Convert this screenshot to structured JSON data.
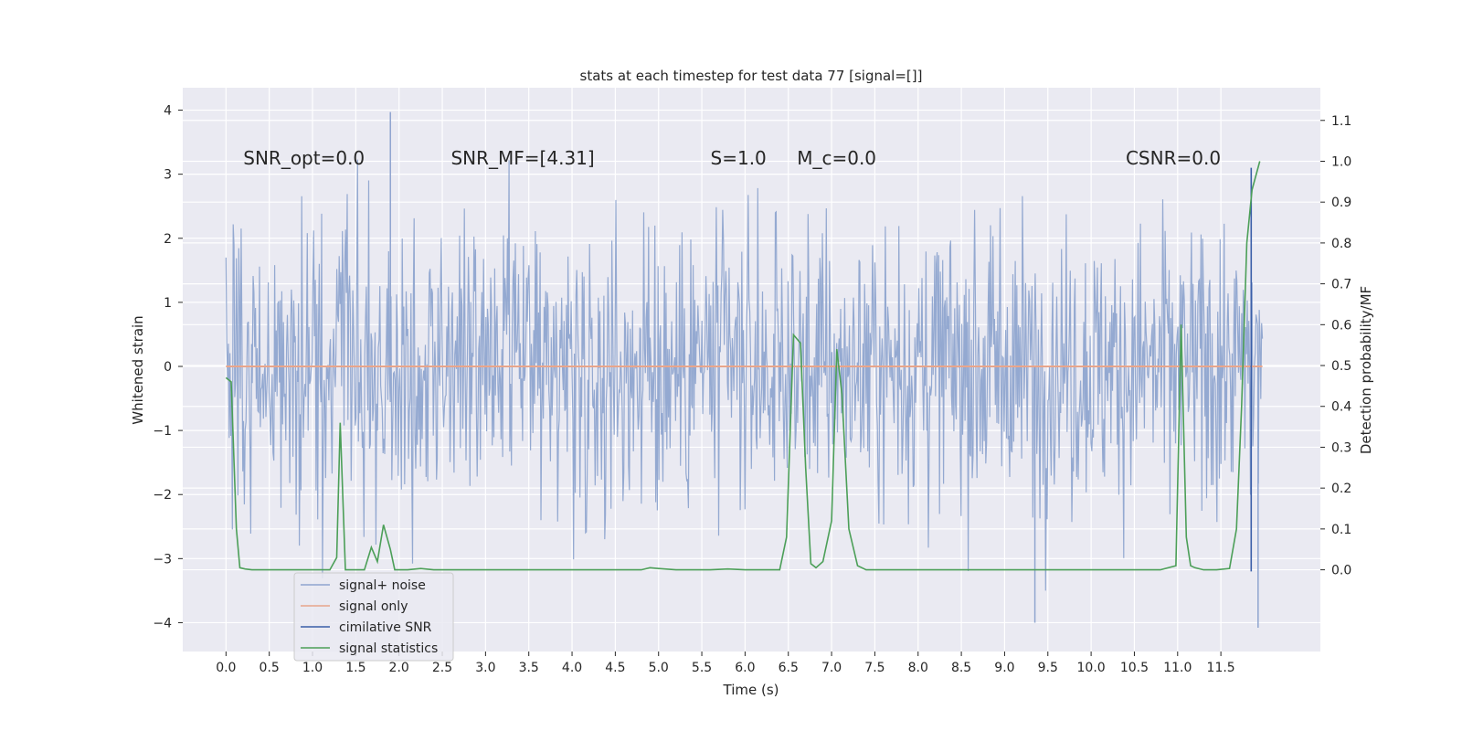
{
  "chart_data": {
    "type": "line",
    "title": "stats at each timestep for test data 77 [signal=[]]",
    "xlabel": "Time (s)",
    "ylabel": "Whitened strain",
    "y2label": "Detection probability/MF",
    "xlim": [
      -0.5,
      12.65
    ],
    "ylim": [
      -4.45,
      4.35
    ],
    "y2lim": [
      -0.2,
      1.18
    ],
    "x_ticks": [
      0.0,
      0.5,
      1.0,
      1.5,
      2.0,
      2.5,
      3.0,
      3.5,
      4.0,
      4.5,
      5.0,
      5.5,
      6.0,
      6.5,
      7.0,
      7.5,
      8.0,
      8.5,
      9.0,
      9.5,
      10.0,
      10.5,
      11.0,
      11.5
    ],
    "x_tick_labels": [
      "0.0",
      "0.5",
      "1.0",
      "1.5",
      "2.0",
      "2.5",
      "3.0",
      "3.5",
      "4.0",
      "4.5",
      "5.0",
      "5.5",
      "6.0",
      "6.5",
      "7.0",
      "7.5",
      "8.0",
      "8.5",
      "9.0",
      "9.5",
      "10.0",
      "10.5",
      "11.0",
      "11.5"
    ],
    "y_ticks": [
      -4,
      -3,
      -2,
      -1,
      0,
      1,
      2,
      3,
      4
    ],
    "y_tick_labels": [
      "−4",
      "−3",
      "−2",
      "−1",
      "0",
      "1",
      "2",
      "3",
      "4"
    ],
    "y2_ticks": [
      0.0,
      0.1,
      0.2,
      0.3,
      0.4,
      0.5,
      0.6,
      0.7,
      0.8,
      0.9,
      1.0,
      1.1
    ],
    "y2_tick_labels": [
      "0.0",
      "0.1",
      "0.2",
      "0.3",
      "0.4",
      "0.5",
      "0.6",
      "0.7",
      "0.8",
      "0.9",
      "1.0",
      "1.1"
    ],
    "grid": true,
    "legend_position": "lower-left",
    "annotations": [
      {
        "id": "snr-opt",
        "text": "SNR_opt=0.0",
        "x": 0.2
      },
      {
        "id": "snr-mf",
        "text": "SNR_MF=[4.31]",
        "x": 2.6
      },
      {
        "id": "s-val",
        "text": "S=1.0",
        "x": 5.6
      },
      {
        "id": "mc-val",
        "text": "M_c=0.0",
        "x": 6.6
      },
      {
        "id": "csnr",
        "text": "CSNR=0.0",
        "x": 10.4
      }
    ],
    "annotation_y": 3.15,
    "series": [
      {
        "name": "signal+ noise",
        "color": "#8fa5cf",
        "axis": "left",
        "x_range": [
          0.0,
          11.98
        ],
        "band_sigma": 1.1,
        "extremes": {
          "max": 3.97,
          "max_x": 1.9,
          "min": -4.08,
          "min_x": 11.93,
          "min2": -4.0,
          "min2_x": 9.35
        }
      },
      {
        "name": "signal only",
        "color": "#e8a58b",
        "axis": "left",
        "x": [
          0.0,
          11.98
        ],
        "y": [
          0.0,
          0.0
        ]
      },
      {
        "name": "cimilative SNR",
        "color": "#3a5ea8",
        "axis": "left",
        "x": [
          11.85,
          11.85
        ],
        "y": [
          -3.2,
          3.1
        ]
      },
      {
        "name": "signal statistics",
        "color": "#4c9f58",
        "axis": "right",
        "x": [
          0.0,
          0.06,
          0.12,
          0.16,
          0.22,
          0.3,
          0.5,
          1.0,
          1.2,
          1.28,
          1.32,
          1.38,
          1.45,
          1.6,
          1.68,
          1.75,
          1.82,
          1.9,
          1.95,
          2.0,
          2.1,
          2.25,
          2.4,
          3.0,
          4.0,
          4.8,
          4.9,
          5.0,
          5.2,
          5.6,
          5.8,
          6.0,
          6.4,
          6.48,
          6.56,
          6.64,
          6.7,
          6.76,
          6.82,
          6.9,
          7.0,
          7.06,
          7.12,
          7.2,
          7.3,
          7.4,
          8.0,
          9.0,
          10.0,
          10.8,
          10.98,
          11.04,
          11.1,
          11.15,
          11.2,
          11.3,
          11.45,
          11.6,
          11.68,
          11.74,
          11.8,
          11.86,
          11.95
        ],
        "y": [
          0.47,
          0.46,
          0.1,
          0.005,
          0.002,
          0.0,
          0.0,
          0.0,
          0.0,
          0.03,
          0.36,
          0.0,
          0.0,
          0.0,
          0.055,
          0.02,
          0.11,
          0.05,
          0.0,
          0.0,
          0.0,
          0.003,
          0.0,
          0.0,
          0.0,
          0.0,
          0.005,
          0.003,
          0.0,
          0.0,
          0.002,
          0.0,
          0.0,
          0.08,
          0.575,
          0.555,
          0.25,
          0.015,
          0.005,
          0.02,
          0.12,
          0.54,
          0.43,
          0.1,
          0.01,
          0.0,
          0.0,
          0.0,
          0.0,
          0.0,
          0.01,
          0.6,
          0.08,
          0.01,
          0.005,
          0.0,
          0.0,
          0.003,
          0.1,
          0.4,
          0.8,
          0.93,
          1.0
        ]
      }
    ]
  }
}
